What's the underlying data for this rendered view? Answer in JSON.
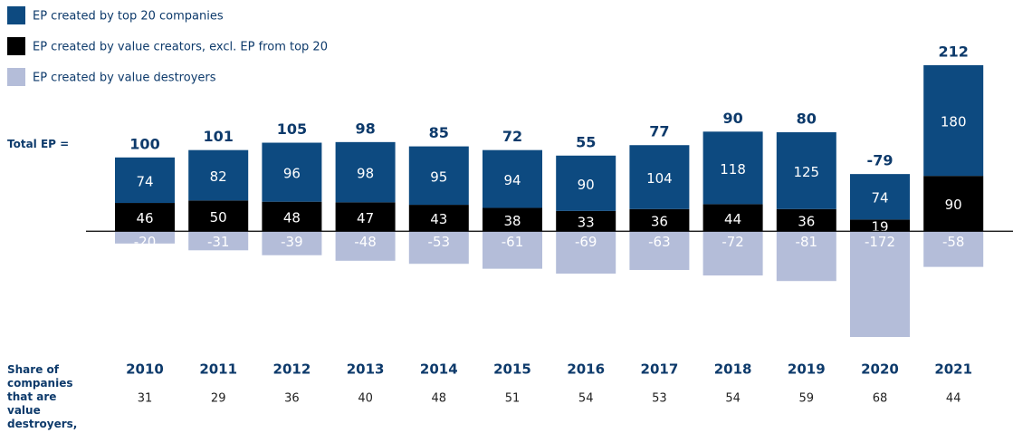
{
  "chart_data": {
    "type": "bar",
    "categories": [
      "2010",
      "2011",
      "2012",
      "2013",
      "2014",
      "2015",
      "2016",
      "2017",
      "2018",
      "2019",
      "2020",
      "2021"
    ],
    "series": [
      {
        "name": "EP created by top 20 companies",
        "color": "#0d4a80",
        "values": [
          74,
          82,
          96,
          98,
          95,
          94,
          90,
          104,
          118,
          125,
          74,
          180
        ]
      },
      {
        "name": "EP created by value creators, excl. EP from top 20",
        "color": "#000000",
        "values": [
          46,
          50,
          48,
          47,
          43,
          38,
          33,
          36,
          44,
          36,
          19,
          90
        ]
      },
      {
        "name": "EP created by value destroyers",
        "color": "#b4bdd9",
        "values": [
          -20,
          -31,
          -39,
          -48,
          -53,
          -61,
          -69,
          -63,
          -72,
          -81,
          -172,
          -58
        ]
      }
    ],
    "totals_label": "Total EP =",
    "totals": [
      100,
      101,
      105,
      98,
      85,
      72,
      55,
      77,
      90,
      80,
      -79,
      212
    ],
    "share_label": "Share of companies that are value destroyers, %",
    "share": [
      31,
      29,
      36,
      40,
      48,
      51,
      54,
      53,
      54,
      59,
      68,
      44
    ]
  }
}
